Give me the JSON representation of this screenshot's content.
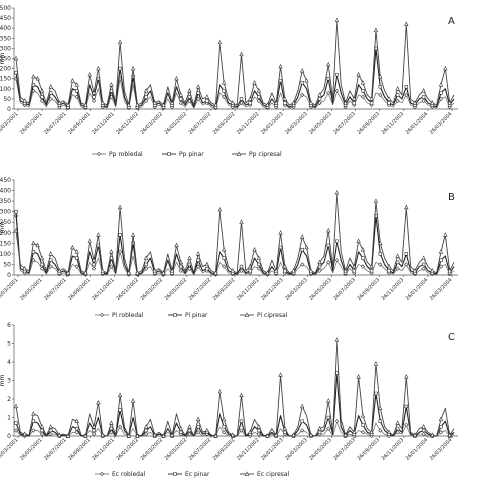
{
  "chart_data": [
    {
      "type": "line",
      "panel": "A",
      "ylabel": "mm",
      "ylim": [
        0,
        500
      ],
      "yticks": [
        0,
        50,
        100,
        150,
        200,
        250,
        300,
        350,
        400,
        450,
        500
      ],
      "xtick_labels": [
        "26/03/2001",
        "26/05/2001",
        "26/07/2001",
        "26/09/2001",
        "26/11/2001",
        "26/01/2002",
        "26/03/2002",
        "26/05/2002",
        "26/07/2002",
        "26/09/2002",
        "26/11/2002",
        "26/01/2003",
        "26/03/2003",
        "26/05/2003",
        "26/07/2003",
        "26/09/2003",
        "26/11/2003",
        "26/01/2004",
        "26/03/2004"
      ],
      "legend": [
        "Pp robledal",
        "Pp pinar",
        "Pp cipresal"
      ],
      "series": [
        {
          "name": "Pp robledal",
          "marker": "diamond",
          "values": [
            150,
            30,
            20,
            10,
            90,
            80,
            40,
            10,
            50,
            40,
            10,
            20,
            5,
            70,
            60,
            10,
            5,
            80,
            40,
            100,
            10,
            5,
            60,
            10,
            150,
            40,
            5,
            120,
            5,
            10,
            40,
            60,
            10,
            20,
            5,
            50,
            10,
            80,
            30,
            10,
            40,
            5,
            50,
            20,
            30,
            10,
            5,
            80,
            60,
            20,
            10,
            5,
            30,
            10,
            20,
            60,
            40,
            10,
            5,
            30,
            10,
            80,
            20,
            5,
            10,
            40,
            70,
            60,
            10,
            5,
            30,
            40,
            80,
            20,
            90,
            50,
            10,
            40,
            20,
            70,
            60,
            30,
            20,
            80,
            70,
            40,
            20,
            10,
            40,
            30,
            70,
            20,
            10,
            30,
            40,
            20,
            10,
            5,
            50,
            60,
            10,
            30
          ]
        },
        {
          "name": "Pp pinar",
          "marker": "square",
          "values": [
            180,
            40,
            30,
            20,
            120,
            110,
            60,
            20,
            80,
            60,
            20,
            30,
            10,
            100,
            90,
            20,
            10,
            120,
            60,
            150,
            20,
            10,
            90,
            20,
            200,
            60,
            10,
            160,
            10,
            20,
            60,
            90,
            20,
            30,
            10,
            80,
            20,
            110,
            50,
            20,
            60,
            10,
            80,
            30,
            40,
            20,
            10,
            120,
            90,
            30,
            20,
            10,
            50,
            20,
            30,
            90,
            60,
            20,
            10,
            50,
            20,
            140,
            30,
            10,
            20,
            60,
            130,
            100,
            20,
            10,
            50,
            70,
            150,
            30,
            170,
            80,
            20,
            60,
            30,
            120,
            90,
            50,
            30,
            300,
            110,
            60,
            30,
            20,
            70,
            50,
            110,
            30,
            20,
            50,
            60,
            30,
            20,
            10,
            80,
            100,
            20,
            50
          ]
        },
        {
          "name": "Pp cipresal",
          "marker": "triangle",
          "values": [
            250,
            60,
            40,
            30,
            160,
            150,
            90,
            30,
            110,
            90,
            30,
            40,
            20,
            140,
            120,
            30,
            20,
            170,
            80,
            200,
            30,
            20,
            120,
            30,
            330,
            90,
            20,
            200,
            20,
            30,
            90,
            120,
            30,
            40,
            20,
            110,
            30,
            150,
            70,
            30,
            90,
            20,
            110,
            50,
            60,
            30,
            20,
            330,
            130,
            50,
            30,
            20,
            270,
            30,
            50,
            130,
            90,
            30,
            20,
            80,
            30,
            210,
            50,
            20,
            30,
            90,
            190,
            140,
            30,
            20,
            70,
            100,
            220,
            50,
            440,
            120,
            30,
            90,
            50,
            170,
            130,
            70,
            50,
            390,
            160,
            90,
            50,
            30,
            100,
            70,
            420,
            50,
            30,
            70,
            90,
            50,
            30,
            20,
            120,
            200,
            30,
            70
          ]
        }
      ]
    },
    {
      "type": "line",
      "panel": "B",
      "ylabel": "mm",
      "ylim": [
        0,
        450
      ],
      "yticks": [
        0,
        50,
        100,
        150,
        200,
        250,
        300,
        350,
        400,
        450
      ],
      "xtick_labels": [
        "26/03/2001",
        "26/05/2001",
        "26/07/2001",
        "26/09/2001",
        "26/11/2001",
        "26/01/2002",
        "26/03/2002",
        "26/05/2002",
        "26/07/2002",
        "26/09/2002",
        "26/11/2002",
        "26/01/2003",
        "26/03/2003",
        "26/05/2003",
        "26/07/2003",
        "26/09/2003",
        "26/11/2003",
        "26/01/2004",
        "26/03/2004"
      ],
      "legend": [
        "Pi robledal",
        "Pi pinar",
        "Pi cipresal"
      ],
      "series": [
        {
          "name": "Pi robledal",
          "marker": "diamond",
          "values": [
            280,
            20,
            10,
            5,
            70,
            60,
            30,
            5,
            40,
            30,
            5,
            10,
            2,
            50,
            40,
            5,
            2,
            60,
            30,
            80,
            5,
            2,
            40,
            5,
            110,
            30,
            2,
            90,
            2,
            5,
            30,
            40,
            5,
            10,
            2,
            30,
            5,
            60,
            20,
            5,
            30,
            2,
            40,
            10,
            20,
            5,
            2,
            60,
            40,
            10,
            5,
            2,
            20,
            5,
            10,
            40,
            30,
            5,
            2,
            20,
            5,
            60,
            10,
            2,
            5,
            30,
            50,
            40,
            5,
            2,
            20,
            30,
            60,
            10,
            70,
            40,
            5,
            30,
            10,
            50,
            40,
            20,
            10,
            60,
            50,
            30,
            10,
            5,
            30,
            20,
            50,
            10,
            5,
            20,
            30,
            10,
            5,
            2,
            40,
            50,
            5,
            20
          ]
        },
        {
          "name": "Pi pinar",
          "marker": "square",
          "values": [
            300,
            30,
            20,
            10,
            110,
            100,
            50,
            10,
            70,
            50,
            10,
            20,
            5,
            90,
            80,
            10,
            5,
            110,
            50,
            140,
            10,
            5,
            80,
            10,
            190,
            50,
            5,
            150,
            5,
            10,
            50,
            80,
            10,
            20,
            5,
            70,
            10,
            100,
            40,
            10,
            50,
            5,
            70,
            20,
            30,
            10,
            5,
            110,
            80,
            20,
            10,
            5,
            40,
            10,
            20,
            80,
            50,
            10,
            5,
            40,
            10,
            130,
            20,
            5,
            10,
            50,
            120,
            90,
            10,
            5,
            40,
            60,
            140,
            20,
            160,
            70,
            10,
            50,
            20,
            110,
            80,
            40,
            20,
            280,
            100,
            50,
            20,
            10,
            60,
            40,
            100,
            20,
            10,
            40,
            50,
            20,
            10,
            5,
            70,
            90,
            10,
            40
          ]
        },
        {
          "name": "Pi cipresal",
          "marker": "triangle",
          "values": [
            210,
            50,
            30,
            20,
            150,
            140,
            80,
            20,
            100,
            80,
            20,
            30,
            10,
            130,
            110,
            20,
            10,
            160,
            70,
            190,
            20,
            10,
            110,
            20,
            320,
            80,
            10,
            190,
            10,
            20,
            80,
            110,
            20,
            30,
            10,
            100,
            20,
            140,
            60,
            20,
            80,
            10,
            100,
            40,
            50,
            20,
            10,
            310,
            120,
            40,
            20,
            10,
            250,
            20,
            40,
            120,
            80,
            20,
            10,
            70,
            20,
            200,
            40,
            10,
            20,
            80,
            180,
            130,
            20,
            10,
            60,
            90,
            210,
            40,
            390,
            110,
            20,
            80,
            40,
            160,
            120,
            60,
            40,
            350,
            150,
            80,
            40,
            20,
            90,
            60,
            320,
            40,
            20,
            60,
            80,
            40,
            20,
            10,
            110,
            190,
            20,
            60
          ]
        }
      ]
    },
    {
      "type": "line",
      "panel": "C",
      "ylabel": "mm",
      "ylim": [
        0,
        6
      ],
      "yticks": [
        0,
        1,
        2,
        3,
        4,
        5,
        6
      ],
      "xtick_labels": [
        "26/03/2001",
        "26/05/2001",
        "26/07/2001",
        "26/09/2001",
        "26/11/2001",
        "26/01/2002",
        "26/03/2002",
        "26/05/2002",
        "26/07/2002",
        "26/09/2002",
        "26/11/2002",
        "26/01/2003",
        "26/03/2003",
        "26/05/2003",
        "26/07/2003",
        "26/09/2003",
        "26/11/2003",
        "26/01/2004",
        "26/03/2004"
      ],
      "legend": [
        "Ec robledal",
        "Ec pinar",
        "Ec cipresal"
      ],
      "series": [
        {
          "name": "Ec robledal",
          "marker": "diamond",
          "values": [
            0.3,
            0.05,
            0,
            0,
            0.3,
            0.3,
            0.1,
            0,
            0.1,
            0.1,
            0,
            0,
            0,
            0.2,
            0.2,
            0,
            0,
            0.3,
            0.1,
            0.4,
            0,
            0,
            0.2,
            0,
            0.5,
            0.1,
            0,
            0.4,
            0,
            0,
            0.1,
            0.2,
            0,
            0,
            0,
            0.2,
            0,
            0.3,
            0.1,
            0,
            0.1,
            0,
            0.2,
            0,
            0.1,
            0,
            0,
            0.5,
            0.2,
            0,
            0,
            0,
            0.3,
            0,
            0,
            0.2,
            0.1,
            0,
            0,
            0.1,
            0,
            0.4,
            0.1,
            0,
            0,
            0.1,
            0.3,
            0.2,
            0,
            0,
            0.1,
            0.1,
            0.4,
            0,
            0.8,
            0.2,
            0,
            0.1,
            0,
            0.3,
            0.2,
            0.1,
            0,
            0.7,
            0.3,
            0.1,
            0,
            0,
            0.2,
            0.1,
            0.6,
            0,
            0,
            0.1,
            0.1,
            0,
            0,
            0,
            0.2,
            0.3,
            0,
            0.1
          ]
        },
        {
          "name": "Ec pinar",
          "marker": "square",
          "values": [
            0.7,
            0.1,
            0.05,
            0,
            0.8,
            0.7,
            0.3,
            0,
            0.3,
            0.2,
            0,
            0.05,
            0,
            0.5,
            0.4,
            0,
            0,
            0.7,
            0.3,
            1.0,
            0,
            0,
            0.4,
            0,
            1.4,
            0.3,
            0,
            1.0,
            0,
            0,
            0.3,
            0.5,
            0,
            0.1,
            0,
            0.4,
            0,
            0.7,
            0.2,
            0,
            0.3,
            0,
            0.5,
            0.1,
            0.2,
            0,
            0,
            1.2,
            0.5,
            0.1,
            0,
            0,
            0.8,
            0,
            0.1,
            0.5,
            0.3,
            0,
            0,
            0.2,
            0,
            1.1,
            0.2,
            0,
            0,
            0.3,
            0.8,
            0.6,
            0,
            0,
            0.2,
            0.3,
            1.0,
            0.1,
            3.4,
            0.5,
            0,
            0.3,
            0.1,
            1.1,
            0.6,
            0.2,
            0.1,
            2.3,
            0.8,
            0.3,
            0.1,
            0,
            0.4,
            0.2,
            1.6,
            0.1,
            0,
            0.2,
            0.3,
            0.1,
            0,
            0,
            0.5,
            0.8,
            0,
            0.2
          ]
        },
        {
          "name": "Ec cipresal",
          "marker": "triangle",
          "values": [
            1.6,
            0.2,
            0.1,
            0.05,
            1.2,
            1.1,
            0.5,
            0.05,
            0.5,
            0.4,
            0.05,
            0.1,
            0,
            0.9,
            0.8,
            0.05,
            0,
            1.2,
            0.5,
            1.8,
            0.05,
            0,
            0.7,
            0.05,
            2.2,
            0.5,
            0,
            1.9,
            0,
            0.05,
            0.5,
            0.9,
            0.05,
            0.2,
            0,
            0.8,
            0.05,
            1.2,
            0.4,
            0.05,
            0.5,
            0,
            0.9,
            0.2,
            0.3,
            0.05,
            0,
            2.4,
            0.9,
            0.2,
            0.05,
            0,
            2.2,
            0.05,
            0.2,
            0.9,
            0.5,
            0.05,
            0,
            0.4,
            0.05,
            3.3,
            0.4,
            0,
            0.05,
            0.5,
            1.6,
            1.1,
            0.05,
            0,
            0.4,
            0.5,
            1.9,
            0.2,
            5.2,
            0.9,
            0.05,
            0.5,
            0.2,
            3.2,
            1.1,
            0.4,
            0.2,
            3.9,
            1.5,
            0.5,
            0.2,
            0.05,
            0.7,
            0.4,
            3.2,
            0.2,
            0.05,
            0.4,
            0.5,
            0.2,
            0.05,
            0,
            0.9,
            1.5,
            0.05,
            0.4
          ]
        }
      ]
    }
  ]
}
